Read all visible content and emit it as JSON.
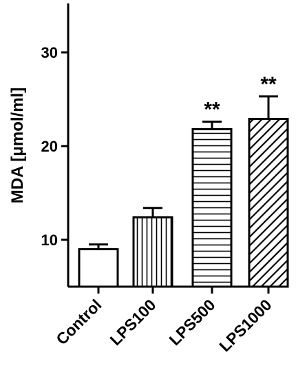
{
  "chart_data": {
    "type": "bar",
    "categories": [
      "Control",
      "LPS100",
      "LPS500",
      "LPS1000"
    ],
    "values": [
      9.0,
      12.4,
      21.8,
      22.9
    ],
    "errors": [
      0.5,
      1.0,
      0.8,
      2.4
    ],
    "annotations": [
      "",
      "",
      "**",
      "**"
    ],
    "patterns": [
      "none",
      "vertical",
      "horizontal",
      "diagonal"
    ],
    "ylabel": "MDA [μmol/ml]",
    "xlabel": "",
    "ylim": [
      5,
      35
    ],
    "yticks": [
      10,
      20,
      30
    ],
    "grid": false,
    "colors": {
      "bar_stroke": "#000000",
      "bar_fill": "#ffffff",
      "axis": "#000000"
    }
  }
}
